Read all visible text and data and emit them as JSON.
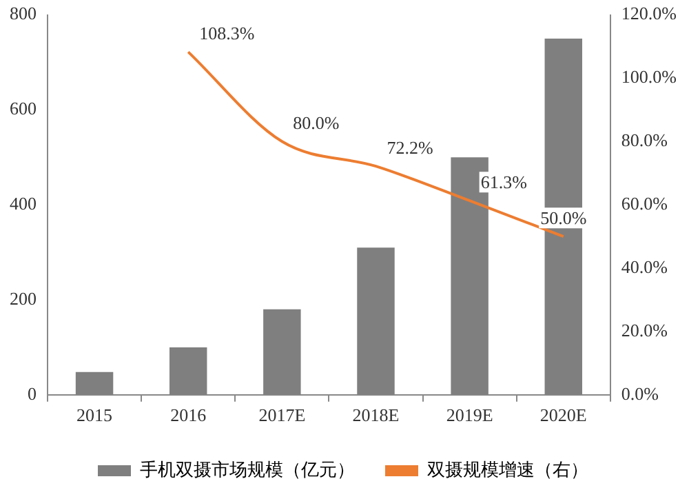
{
  "chart_data": {
    "type": "bar",
    "categories": [
      "2015",
      "2016",
      "2017E",
      "2018E",
      "2019E",
      "2020E"
    ],
    "series": [
      {
        "name": "手机双摄市场规模（亿元）",
        "color": "#7f7f7f",
        "values": [
          48,
          100,
          180,
          310,
          500,
          750
        ]
      },
      {
        "name": "双摄规模增速（右）",
        "type": "line",
        "axis": "y2",
        "color": "#ed7d31",
        "values": [
          null,
          108.3,
          80.0,
          72.2,
          61.3,
          50.0
        ],
        "value_labels": [
          null,
          "108.3%",
          "80.0%",
          "72.2%",
          "61.3%",
          "50.0%"
        ]
      }
    ],
    "ylim": [
      0,
      800
    ],
    "yticks": [
      0,
      200,
      400,
      600,
      800
    ],
    "y2lim": [
      0,
      120
    ],
    "y2ticks": [
      {
        "value": 0,
        "label": "0.0%"
      },
      {
        "value": 20,
        "label": "20.0%"
      },
      {
        "value": 40,
        "label": "40.0%"
      },
      {
        "value": 60,
        "label": "60.0%"
      },
      {
        "value": 80,
        "label": "80.0%"
      },
      {
        "value": 100,
        "label": "100.0%"
      },
      {
        "value": 120,
        "label": "120.0%"
      }
    ],
    "grid": false,
    "legend": "bottom",
    "marker": "none"
  }
}
